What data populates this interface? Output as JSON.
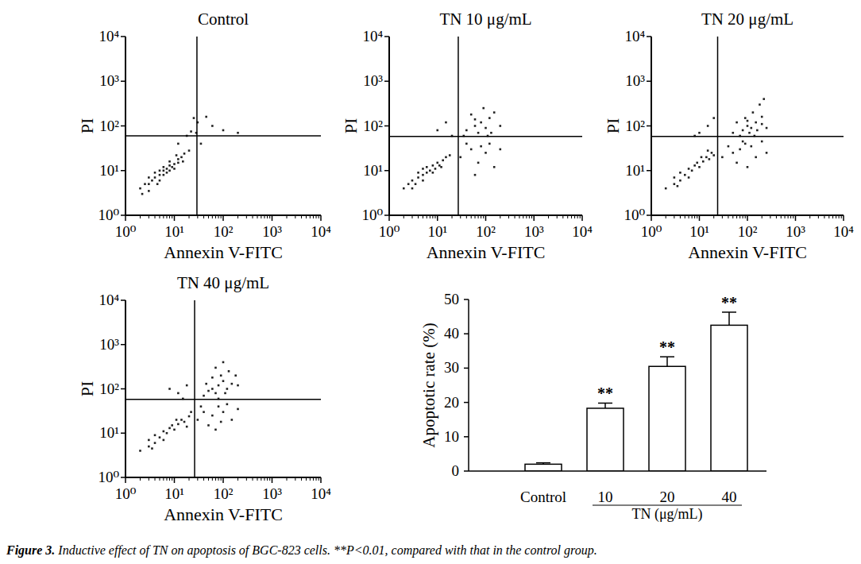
{
  "chart_data": [
    {
      "type": "scatter",
      "title": "Control",
      "xlabel": "Annexin V-FITC",
      "ylabel": "PI",
      "log": true,
      "color": "#222222",
      "marker": "square",
      "xlim": [
        1,
        10000
      ],
      "ylim": [
        1,
        10000
      ],
      "xticks": [
        {
          "value": 1,
          "label": "10⁰"
        },
        {
          "value": 10,
          "label": "10¹"
        },
        {
          "value": 100,
          "label": "10²"
        },
        {
          "value": 1000,
          "label": "10³"
        },
        {
          "value": 10000,
          "label": "10⁴"
        }
      ],
      "yticks": [
        {
          "value": 1,
          "label": "10⁰"
        },
        {
          "value": 10,
          "label": "10¹"
        },
        {
          "value": 100,
          "label": "10²"
        },
        {
          "value": 1000,
          "label": "10³"
        },
        {
          "value": 10000,
          "label": "10⁴"
        }
      ],
      "gates": {
        "x": 29,
        "y": 60
      },
      "x": [
        2,
        2.5,
        3,
        3,
        3.5,
        4,
        4,
        5,
        5,
        5,
        6,
        6,
        7,
        7,
        8,
        8,
        9,
        10,
        10,
        12,
        12,
        14,
        3,
        2.2,
        4.5,
        6,
        8,
        11,
        15,
        16,
        25,
        30,
        45,
        60,
        28,
        100,
        200,
        18,
        35,
        22,
        12,
        20
      ],
      "values": [
        4,
        5,
        5,
        7,
        6,
        7,
        9,
        8,
        10,
        6,
        10,
        12,
        11,
        9,
        13,
        10,
        12,
        14,
        11,
        15,
        18,
        20,
        3.5,
        3,
        5,
        8,
        16,
        22,
        16,
        24,
        150,
        120,
        160,
        100,
        70,
        80,
        70,
        60,
        40,
        75,
        40,
        28
      ]
    },
    {
      "type": "scatter",
      "title": "TN 10 μg/mL",
      "xlabel": "Annexin V-FITC",
      "ylabel": "PI",
      "log": true,
      "color": "#222222",
      "marker": "square",
      "xlim": [
        1,
        10000
      ],
      "ylim": [
        1,
        10000
      ],
      "xticks": [
        {
          "value": 1,
          "label": "10⁰"
        },
        {
          "value": 10,
          "label": "10¹"
        },
        {
          "value": 100,
          "label": "10²"
        },
        {
          "value": 1000,
          "label": "10³"
        },
        {
          "value": 10000,
          "label": "10⁴"
        }
      ],
      "yticks": [
        {
          "value": 1,
          "label": "10⁰"
        },
        {
          "value": 10,
          "label": "10¹"
        },
        {
          "value": 100,
          "label": "10²"
        },
        {
          "value": 1000,
          "label": "10³"
        },
        {
          "value": 10000,
          "label": "10⁴"
        }
      ],
      "gates": {
        "x": 27,
        "y": 58
      },
      "x": [
        2,
        2.5,
        3,
        3.5,
        4,
        4,
        5,
        5,
        6,
        6,
        7,
        8,
        9,
        10,
        11,
        13,
        15,
        3,
        5,
        8,
        12,
        18,
        40,
        60,
        80,
        100,
        70,
        120,
        150,
        50,
        90,
        130,
        35,
        200,
        110,
        60,
        30,
        50,
        70,
        100,
        150,
        40,
        80,
        60,
        120,
        200,
        10,
        15,
        20
      ],
      "values": [
        4,
        5,
        6,
        5,
        7,
        9,
        8,
        11,
        9,
        12,
        10,
        13,
        11,
        15,
        13,
        17,
        20,
        4,
        6,
        9,
        12,
        22,
        80,
        100,
        120,
        90,
        70,
        150,
        200,
        180,
        250,
        70,
        60,
        100,
        60,
        140,
        20,
        30,
        15,
        25,
        12,
        40,
        35,
        8,
        40,
        30,
        80,
        120,
        60
      ]
    },
    {
      "type": "scatter",
      "title": "TN 20 μg/mL",
      "xlabel": "Annexin V-FITC",
      "ylabel": "PI",
      "log": true,
      "color": "#222222",
      "marker": "square",
      "xlim": [
        1,
        10000
      ],
      "ylim": [
        1,
        10000
      ],
      "xticks": [
        {
          "value": 1,
          "label": "10⁰"
        },
        {
          "value": 10,
          "label": "10¹"
        },
        {
          "value": 100,
          "label": "10²"
        },
        {
          "value": 1000,
          "label": "10³"
        },
        {
          "value": 10000,
          "label": "10⁴"
        }
      ],
      "yticks": [
        {
          "value": 1,
          "label": "10⁰"
        },
        {
          "value": 10,
          "label": "10¹"
        },
        {
          "value": 100,
          "label": "10²"
        },
        {
          "value": 1000,
          "label": "10³"
        },
        {
          "value": 10000,
          "label": "10⁴"
        }
      ],
      "gates": {
        "x": 24,
        "y": 58
      },
      "x": [
        2,
        3,
        3,
        4,
        4,
        5,
        6,
        7,
        8,
        9,
        10,
        12,
        14,
        16,
        18,
        20,
        3.5,
        6,
        11,
        15,
        80,
        100,
        120,
        150,
        90,
        200,
        110,
        130,
        70,
        160,
        60,
        250,
        180,
        100,
        140,
        50,
        200,
        220,
        30,
        50,
        70,
        90,
        120,
        150,
        60,
        200,
        100,
        40,
        250,
        80,
        10,
        15,
        8,
        20
      ],
      "values": [
        4,
        5,
        7,
        6,
        9,
        8,
        11,
        10,
        13,
        15,
        12,
        16,
        20,
        18,
        25,
        22,
        4.5,
        7,
        20,
        28,
        80,
        100,
        90,
        120,
        150,
        110,
        70,
        200,
        60,
        80,
        120,
        90,
        300,
        130,
        60,
        70,
        160,
        400,
        20,
        25,
        30,
        40,
        35,
        20,
        15,
        45,
        12,
        35,
        25,
        45,
        70,
        100,
        60,
        150
      ]
    },
    {
      "type": "scatter",
      "title": "TN 40 μg/mL",
      "xlabel": "Annexin V-FITC",
      "ylabel": "PI",
      "log": true,
      "color": "#222222",
      "marker": "square",
      "xlim": [
        1,
        10000
      ],
      "ylim": [
        1,
        10000
      ],
      "xticks": [
        {
          "value": 1,
          "label": "10⁰"
        },
        {
          "value": 10,
          "label": "10¹"
        },
        {
          "value": 100,
          "label": "10²"
        },
        {
          "value": 1000,
          "label": "10³"
        },
        {
          "value": 10000,
          "label": "10⁴"
        }
      ],
      "yticks": [
        {
          "value": 1,
          "label": "10⁰"
        },
        {
          "value": 10,
          "label": "10¹"
        },
        {
          "value": 100,
          "label": "10²"
        },
        {
          "value": 1000,
          "label": "10³"
        },
        {
          "value": 10000,
          "label": "10⁴"
        }
      ],
      "gates": {
        "x": 26,
        "y": 58
      },
      "x": [
        2,
        3,
        3,
        4,
        4,
        5,
        6,
        7,
        8,
        9,
        10,
        12,
        14,
        16,
        20,
        3.5,
        6,
        11,
        18,
        22,
        60,
        80,
        70,
        100,
        50,
        120,
        90,
        150,
        40,
        70,
        110,
        200,
        60,
        130,
        80,
        180,
        100,
        45,
        30,
        40,
        60,
        80,
        100,
        50,
        120,
        150,
        70,
        200,
        35,
        90,
        12,
        15,
        18,
        8
      ],
      "values": [
        4,
        5,
        7,
        6,
        9,
        8,
        11,
        10,
        13,
        15,
        12,
        16,
        20,
        18,
        24,
        4.5,
        7,
        20,
        14,
        30,
        100,
        120,
        80,
        150,
        90,
        100,
        200,
        130,
        70,
        300,
        80,
        120,
        180,
        250,
        60,
        200,
        400,
        130,
        20,
        30,
        25,
        40,
        30,
        15,
        45,
        20,
        12,
        35,
        40,
        18,
        80,
        60,
        120,
        100
      ]
    },
    {
      "type": "bar",
      "ylabel": "Apoptotic rate (%)",
      "xlabel": "TN (μg/mL)",
      "color": "#ffffff",
      "categories": [
        "Control",
        "10",
        "20",
        "40"
      ],
      "values": [
        2.0,
        18.3,
        30.5,
        42.5
      ],
      "errors": [
        0.4,
        1.5,
        2.8,
        3.8
      ],
      "annotations": [
        null,
        "**",
        "**",
        "**"
      ],
      "ylim": [
        0,
        50
      ],
      "yticks": [
        0,
        10,
        20,
        30,
        40,
        50
      ]
    }
  ],
  "caption": {
    "label": "Figure 3.",
    "text": "Inductive effect of TN on apoptosis of BGC-823 cells. **P<0.01, compared with that in the control group."
  }
}
